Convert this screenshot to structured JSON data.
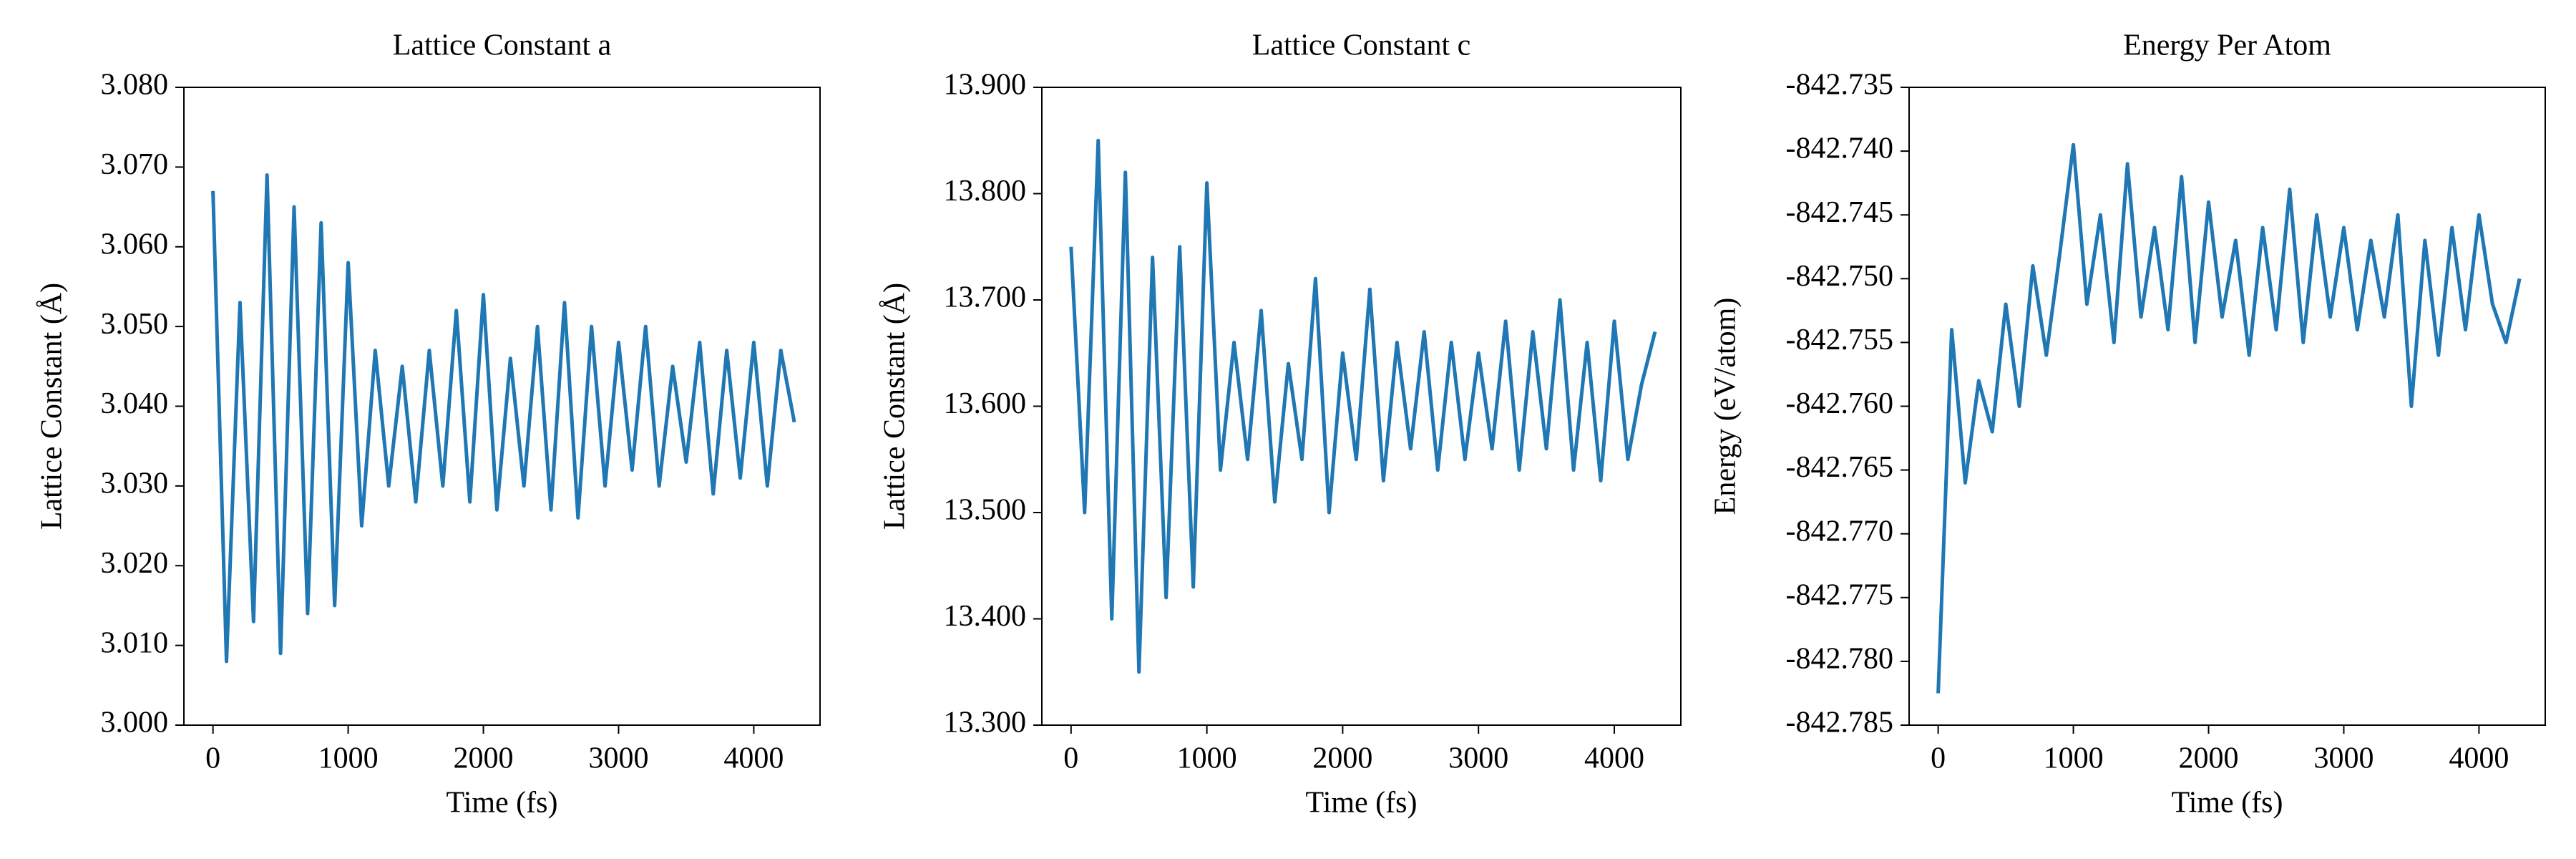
{
  "chart_data": [
    {
      "type": "line",
      "title": "Lattice Constant a",
      "xlabel": "Time (fs)",
      "ylabel": "Lattice Constant (Å)",
      "x": [
        0,
        100,
        200,
        300,
        400,
        500,
        600,
        700,
        800,
        900,
        1000,
        1100,
        1200,
        1300,
        1400,
        1500,
        1600,
        1700,
        1800,
        1900,
        2000,
        2100,
        2200,
        2300,
        2400,
        2500,
        2600,
        2700,
        2800,
        2900,
        3000,
        3100,
        3200,
        3300,
        3400,
        3500,
        3600,
        3700,
        3800,
        3900,
        4000,
        4100,
        4200,
        4300
      ],
      "series": [
        {
          "color": "#1f77b4",
          "values": [
            3.067,
            3.008,
            3.053,
            3.013,
            3.069,
            3.009,
            3.065,
            3.014,
            3.063,
            3.015,
            3.058,
            3.025,
            3.047,
            3.03,
            3.045,
            3.028,
            3.047,
            3.03,
            3.052,
            3.028,
            3.054,
            3.027,
            3.046,
            3.03,
            3.05,
            3.027,
            3.053,
            3.026,
            3.05,
            3.03,
            3.048,
            3.032,
            3.05,
            3.03,
            3.045,
            3.033,
            3.048,
            3.029,
            3.047,
            3.031,
            3.048,
            3.03,
            3.047,
            3.038
          ]
        }
      ],
      "xlim": [
        -215,
        4490
      ],
      "xticks": [
        0,
        1000,
        2000,
        3000,
        4000
      ],
      "ylim": [
        3.0,
        3.08
      ],
      "yticks": [
        {
          "value": 3.0,
          "label": "3.000"
        },
        {
          "value": 3.01,
          "label": "3.010"
        },
        {
          "value": 3.02,
          "label": "3.020"
        },
        {
          "value": 3.03,
          "label": "3.030"
        },
        {
          "value": 3.04,
          "label": "3.040"
        },
        {
          "value": 3.05,
          "label": "3.050"
        },
        {
          "value": 3.06,
          "label": "3.060"
        },
        {
          "value": 3.07,
          "label": "3.070"
        },
        {
          "value": 3.08,
          "label": "3.080"
        }
      ]
    },
    {
      "type": "line",
      "title": "Lattice Constant c",
      "xlabel": "Time (fs)",
      "ylabel": "Lattice Constant (Å)",
      "x": [
        0,
        100,
        200,
        300,
        400,
        500,
        600,
        700,
        800,
        900,
        1000,
        1100,
        1200,
        1300,
        1400,
        1500,
        1600,
        1700,
        1800,
        1900,
        2000,
        2100,
        2200,
        2300,
        2400,
        2500,
        2600,
        2700,
        2800,
        2900,
        3000,
        3100,
        3200,
        3300,
        3400,
        3500,
        3600,
        3700,
        3800,
        3900,
        4000,
        4100,
        4200,
        4300
      ],
      "series": [
        {
          "color": "#1f77b4",
          "values": [
            13.75,
            13.5,
            13.85,
            13.4,
            13.82,
            13.35,
            13.74,
            13.42,
            13.75,
            13.43,
            13.81,
            13.54,
            13.66,
            13.55,
            13.69,
            13.51,
            13.64,
            13.55,
            13.72,
            13.5,
            13.65,
            13.55,
            13.71,
            13.53,
            13.66,
            13.56,
            13.67,
            13.54,
            13.66,
            13.55,
            13.65,
            13.56,
            13.68,
            13.54,
            13.67,
            13.56,
            13.7,
            13.54,
            13.66,
            13.53,
            13.68,
            13.55,
            13.62,
            13.67
          ]
        }
      ],
      "xlim": [
        -215,
        4490
      ],
      "xticks": [
        0,
        1000,
        2000,
        3000,
        4000
      ],
      "ylim": [
        13.3,
        13.9
      ],
      "yticks": [
        {
          "value": 13.3,
          "label": "13.300"
        },
        {
          "value": 13.4,
          "label": "13.400"
        },
        {
          "value": 13.5,
          "label": "13.500"
        },
        {
          "value": 13.6,
          "label": "13.600"
        },
        {
          "value": 13.7,
          "label": "13.700"
        },
        {
          "value": 13.8,
          "label": "13.800"
        },
        {
          "value": 13.9,
          "label": "13.900"
        }
      ]
    },
    {
      "type": "line",
      "title": "Energy Per Atom",
      "xlabel": "Time (fs)",
      "ylabel": "Energy (eV/atom)",
      "x": [
        0,
        100,
        200,
        300,
        400,
        500,
        600,
        700,
        800,
        900,
        1000,
        1100,
        1200,
        1300,
        1400,
        1500,
        1600,
        1700,
        1800,
        1900,
        2000,
        2100,
        2200,
        2300,
        2400,
        2500,
        2600,
        2700,
        2800,
        2900,
        3000,
        3100,
        3200,
        3300,
        3400,
        3500,
        3600,
        3700,
        3800,
        3900,
        4000,
        4100,
        4200,
        4300
      ],
      "series": [
        {
          "color": "#1f77b4",
          "values": [
            -842.7825,
            -842.754,
            -842.766,
            -842.758,
            -842.762,
            -842.752,
            -842.76,
            -842.749,
            -842.756,
            -842.748,
            -842.7395,
            -842.752,
            -842.745,
            -842.755,
            -842.741,
            -842.753,
            -842.746,
            -842.754,
            -842.742,
            -842.755,
            -842.744,
            -842.753,
            -842.747,
            -842.756,
            -842.746,
            -842.754,
            -842.743,
            -842.755,
            -842.745,
            -842.753,
            -842.746,
            -842.754,
            -842.747,
            -842.753,
            -842.745,
            -842.76,
            -842.747,
            -842.756,
            -842.746,
            -842.754,
            -842.745,
            -842.752,
            -842.755,
            -842.75
          ]
        }
      ],
      "xlim": [
        -215,
        4490
      ],
      "xticks": [
        0,
        1000,
        2000,
        3000,
        4000
      ],
      "ylim": [
        -842.785,
        -842.735
      ],
      "yticks": [
        {
          "value": -842.785,
          "label": "-842.785"
        },
        {
          "value": -842.78,
          "label": "-842.780"
        },
        {
          "value": -842.775,
          "label": "-842.775"
        },
        {
          "value": -842.77,
          "label": "-842.770"
        },
        {
          "value": -842.765,
          "label": "-842.765"
        },
        {
          "value": -842.76,
          "label": "-842.760"
        },
        {
          "value": -842.755,
          "label": "-842.755"
        },
        {
          "value": -842.75,
          "label": "-842.750"
        },
        {
          "value": -842.745,
          "label": "-842.745"
        },
        {
          "value": -842.74,
          "label": "-842.740"
        },
        {
          "value": -842.735,
          "label": "-842.735"
        }
      ]
    }
  ]
}
